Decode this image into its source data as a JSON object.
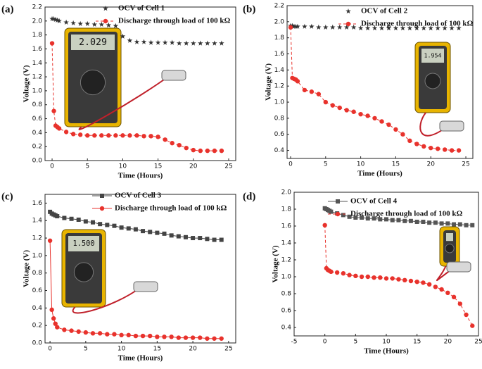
{
  "chart_data": [
    {
      "type": "scatter",
      "panel": "(a)",
      "xlabel": "Time (Hours)",
      "ylabel": "Voltage (V)",
      "x": [
        0,
        0.25,
        0.5,
        0.75,
        1,
        2,
        3,
        4,
        5,
        6,
        7,
        8,
        9,
        10,
        11,
        12,
        13,
        14,
        15,
        16,
        17,
        18,
        19,
        20,
        21,
        22,
        23,
        24
      ],
      "xlim": [
        -1,
        26
      ],
      "xticks": [
        0,
        5,
        10,
        15,
        20,
        25
      ],
      "ylim": [
        0.0,
        2.2
      ],
      "yticks": [
        {
          "value": 0,
          "label": "0.0"
        },
        0.2,
        0.4,
        0.6,
        0.8,
        {
          "value": 1,
          "label": "1.0"
        },
        1.2,
        1.4,
        1.6,
        1.8,
        {
          "value": 2,
          "label": "2.0"
        },
        2.2
      ],
      "legend": "upper right",
      "photo_display": "2.029",
      "series": [
        {
          "name": "OCV of Cell 1",
          "color": "#333333",
          "marker": "star",
          "line_style": "none",
          "values": [
            2.03,
            2.03,
            2.02,
            2.01,
            2.0,
            1.98,
            1.97,
            1.96,
            1.96,
            1.95,
            1.95,
            1.94,
            1.93,
            1.78,
            1.72,
            1.7,
            1.7,
            1.69,
            1.69,
            1.69,
            1.69,
            1.68,
            1.68,
            1.68,
            1.68,
            1.68,
            1.68,
            1.68
          ]
        },
        {
          "name": "Discharge through load of 100 kΩ",
          "color": "#e8322c",
          "marker": "circle",
          "line_style": "dashed",
          "values": [
            1.68,
            0.71,
            0.5,
            0.48,
            0.46,
            0.41,
            0.38,
            0.37,
            0.36,
            0.36,
            0.36,
            0.36,
            0.36,
            0.36,
            0.36,
            0.36,
            0.35,
            0.35,
            0.34,
            0.3,
            0.25,
            0.22,
            0.18,
            0.15,
            0.14,
            0.14,
            0.14,
            0.14
          ]
        }
      ]
    },
    {
      "type": "scatter",
      "panel": "(b)",
      "xlabel": "Time (Hours)",
      "ylabel": "Voltage (V)",
      "x": [
        0,
        0.25,
        0.5,
        0.75,
        1,
        2,
        3,
        4,
        5,
        6,
        7,
        8,
        9,
        10,
        11,
        12,
        13,
        14,
        15,
        16,
        17,
        18,
        19,
        20,
        21,
        22,
        23,
        24
      ],
      "xlim": [
        -0.5,
        26
      ],
      "xticks": [
        0,
        5,
        10,
        15,
        20,
        25
      ],
      "ylim": [
        0.3,
        2.2
      ],
      "yticks": [
        0.4,
        0.6,
        0.8,
        {
          "value": 1,
          "label": "1.0"
        },
        1.2,
        1.4,
        1.6,
        1.8,
        {
          "value": 2,
          "label": "2.0"
        },
        2.2
      ],
      "legend": "upper right",
      "photo_display": "1.954",
      "series": [
        {
          "name": "OCV of Cell 2",
          "color": "#333333",
          "marker": "star",
          "line_style": "none",
          "values": [
            1.95,
            1.95,
            1.94,
            1.94,
            1.94,
            1.94,
            1.94,
            1.93,
            1.93,
            1.93,
            1.93,
            1.93,
            1.93,
            1.92,
            1.92,
            1.92,
            1.92,
            1.92,
            1.92,
            1.92,
            1.92,
            1.92,
            1.92,
            1.92,
            1.92,
            1.92,
            1.92,
            1.92
          ]
        },
        {
          "name": "Discharge through load of 100 kΩ",
          "color": "#e8322c",
          "marker": "circle",
          "line_style": "dashed",
          "values": [
            1.93,
            1.3,
            1.29,
            1.28,
            1.26,
            1.15,
            1.13,
            1.1,
            1.0,
            0.96,
            0.93,
            0.9,
            0.88,
            0.85,
            0.83,
            0.8,
            0.76,
            0.72,
            0.66,
            0.6,
            0.52,
            0.48,
            0.45,
            0.43,
            0.42,
            0.41,
            0.4,
            0.4
          ]
        }
      ]
    },
    {
      "type": "scatter",
      "panel": "(c)",
      "xlabel": "Time (Hours)",
      "ylabel": "Voltage (V)",
      "x": [
        0,
        0.25,
        0.5,
        0.75,
        1,
        2,
        3,
        4,
        5,
        6,
        7,
        8,
        9,
        10,
        11,
        12,
        13,
        14,
        15,
        16,
        17,
        18,
        19,
        20,
        21,
        22,
        23,
        24
      ],
      "xlim": [
        -0.7,
        26
      ],
      "xticks": [
        0,
        5,
        10,
        15,
        20,
        25
      ],
      "ylim": [
        0.0,
        1.7
      ],
      "yticks": [
        {
          "value": 0,
          "label": "0.0"
        },
        0.2,
        0.4,
        0.6,
        0.8,
        {
          "value": 1,
          "label": "1.0"
        },
        1.2,
        1.4,
        1.6
      ],
      "legend": "upper right",
      "photo_display": "1.500",
      "series": [
        {
          "name": "OCV of Cell 3",
          "color": "#444444",
          "marker": "square",
          "line_style": "solid",
          "values": [
            1.5,
            1.48,
            1.47,
            1.46,
            1.45,
            1.43,
            1.42,
            1.41,
            1.39,
            1.38,
            1.36,
            1.35,
            1.34,
            1.32,
            1.31,
            1.3,
            1.28,
            1.27,
            1.26,
            1.25,
            1.23,
            1.22,
            1.21,
            1.2,
            1.2,
            1.19,
            1.18,
            1.18
          ]
        },
        {
          "name": "Discharge through load of 100 kΩ",
          "color": "#e8322c",
          "marker": "circle",
          "line_style": "solid",
          "values": [
            1.17,
            0.38,
            0.28,
            0.22,
            0.18,
            0.15,
            0.14,
            0.13,
            0.12,
            0.11,
            0.11,
            0.1,
            0.1,
            0.09,
            0.09,
            0.08,
            0.08,
            0.08,
            0.07,
            0.07,
            0.07,
            0.06,
            0.06,
            0.06,
            0.06,
            0.05,
            0.05,
            0.05
          ]
        }
      ]
    },
    {
      "type": "scatter",
      "panel": "(d)",
      "xlabel": "Time (Hours)",
      "ylabel": "Voltage (V)",
      "x": [
        0,
        0.25,
        0.5,
        0.75,
        1,
        2,
        3,
        4,
        5,
        6,
        7,
        8,
        9,
        10,
        11,
        12,
        13,
        14,
        15,
        16,
        17,
        18,
        19,
        20,
        21,
        22,
        23,
        24
      ],
      "xlim": [
        -5,
        25
      ],
      "xticks": [
        -5,
        0,
        5,
        10,
        15,
        20,
        25
      ],
      "ylim": [
        0.3,
        2.0
      ],
      "yticks": [
        0.4,
        0.6,
        0.8,
        {
          "value": 1,
          "label": "1.0"
        },
        1.2,
        1.4,
        1.6,
        1.8,
        {
          "value": 2,
          "label": "2.0"
        }
      ],
      "legend": "upper right",
      "series": [
        {
          "name": "OCV of Cell 4",
          "color": "#555555",
          "marker": "square",
          "line_style": "solid",
          "values": [
            1.81,
            1.8,
            1.79,
            1.78,
            1.77,
            1.75,
            1.73,
            1.71,
            1.7,
            1.7,
            1.69,
            1.69,
            1.68,
            1.68,
            1.67,
            1.67,
            1.66,
            1.66,
            1.65,
            1.65,
            1.64,
            1.64,
            1.63,
            1.63,
            1.62,
            1.62,
            1.61,
            1.61
          ]
        },
        {
          "name": "Discharge through load of 100 kΩ",
          "color": "#e8322c",
          "marker": "circle",
          "line_style": "dashed",
          "values": [
            1.61,
            1.1,
            1.08,
            1.07,
            1.06,
            1.05,
            1.04,
            1.02,
            1.01,
            1.0,
            1.0,
            0.99,
            0.99,
            0.98,
            0.98,
            0.97,
            0.96,
            0.95,
            0.94,
            0.93,
            0.91,
            0.88,
            0.85,
            0.81,
            0.76,
            0.68,
            0.55,
            0.42
          ]
        }
      ]
    }
  ]
}
